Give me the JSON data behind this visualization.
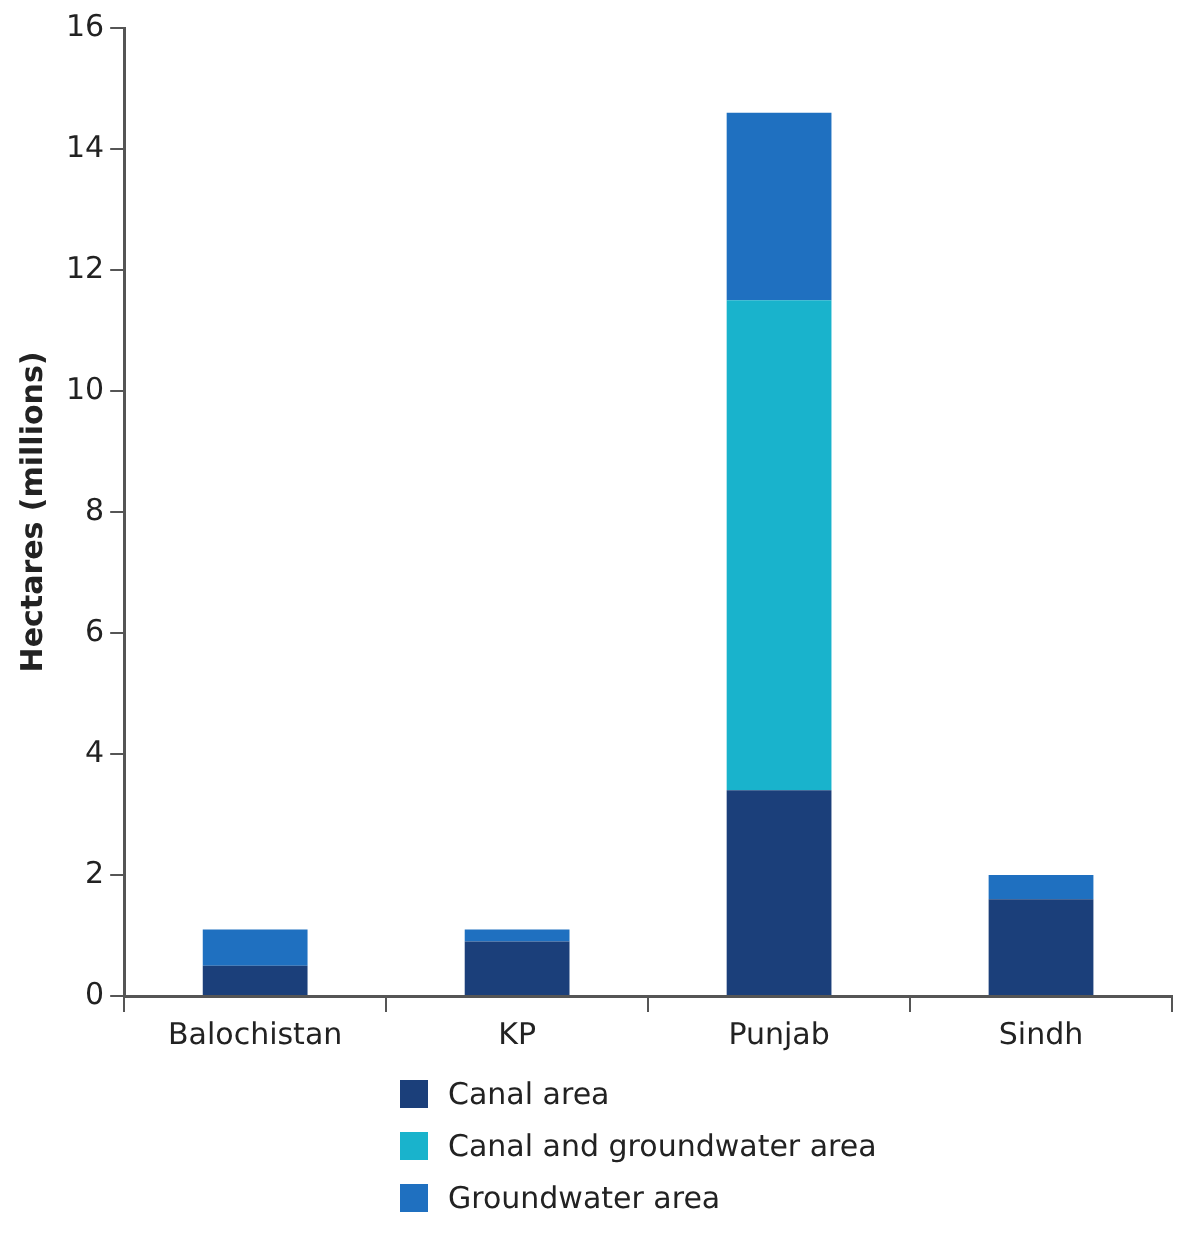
{
  "chart_data": {
    "type": "bar",
    "ylabel": "Hectares (millions)",
    "categories": [
      "Balochistan",
      "KP",
      "Punjab",
      "Sindh"
    ],
    "stacked": true,
    "series": [
      {
        "name": "Canal area",
        "color": "#1b3f7a",
        "values": [
          0.5,
          0.9,
          3.4,
          1.6
        ]
      },
      {
        "name": "Canal and groundwater area",
        "color": "#19b3cc",
        "values": [
          0,
          0,
          8.1,
          0
        ]
      },
      {
        "name": "Groundwater area",
        "color": "#1f70c0",
        "values": [
          0.6,
          0.2,
          3.1,
          0.4
        ]
      }
    ],
    "ylim": [
      0,
      16
    ],
    "yticks": [
      0,
      2,
      4,
      6,
      8,
      10,
      12,
      14,
      16
    ],
    "grid": false,
    "legend": "bottom"
  }
}
